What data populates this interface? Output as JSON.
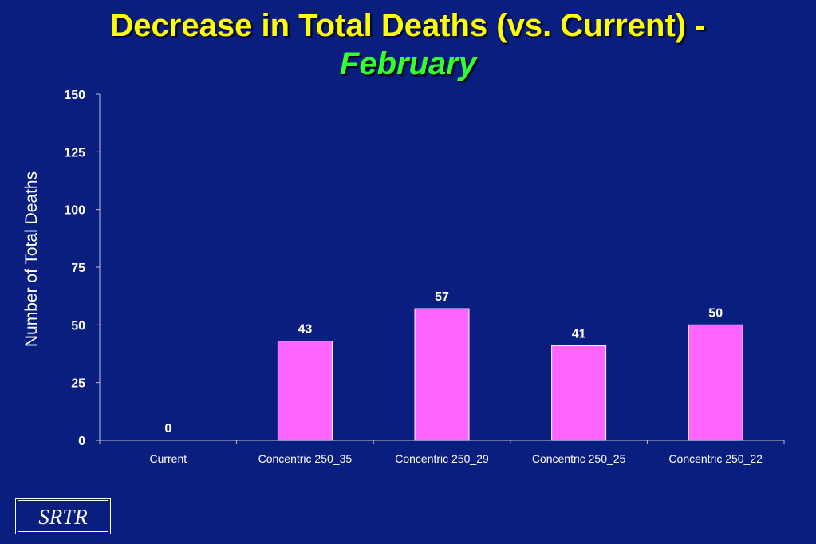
{
  "title": {
    "main": "Decrease in Total Deaths (vs. Current) -",
    "sub": "February"
  },
  "logo_text": "SRTR",
  "colors": {
    "background": "#0a1e80",
    "title": "#ffff00",
    "subtitle": "#33ff33",
    "bar": "#ff66ff",
    "text": "#ffffff"
  },
  "chart_data": {
    "type": "bar",
    "categories": [
      "Current",
      "Concentric 250_35",
      "Concentric 250_29",
      "Concentric 250_25",
      "Concentric 250_22"
    ],
    "values": [
      0,
      43,
      57,
      41,
      50
    ],
    "data_labels": [
      "0",
      "43",
      "57",
      "41",
      "50"
    ],
    "title": "Decrease in Total Deaths (vs. Current) - February",
    "xlabel": "",
    "ylabel": "Number of Total Deaths",
    "ylim": [
      0,
      150
    ],
    "yticks": [
      0,
      25,
      50,
      75,
      100,
      125,
      150
    ],
    "grid": false,
    "legend": "none"
  }
}
